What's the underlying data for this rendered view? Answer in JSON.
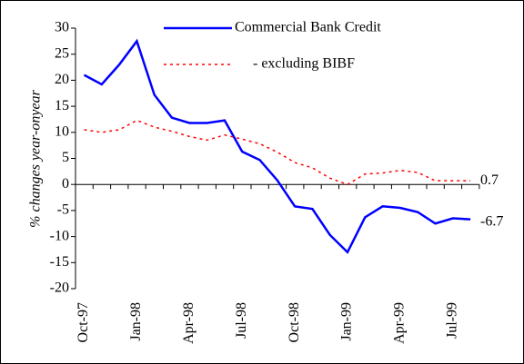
{
  "chart_data": {
    "type": "line",
    "y_label": "% changes year-onyear",
    "categories": [
      "Oct-97",
      null,
      null,
      "Jan-98",
      null,
      null,
      "Apr-98",
      null,
      null,
      "Jul-98",
      null,
      null,
      "Oct-98",
      null,
      null,
      "Jan-99",
      null,
      null,
      "Apr-99",
      null,
      null,
      "Jul-99",
      null
    ],
    "series": [
      {
        "name": "Commercial Bank Credit",
        "color": "#0000ff",
        "dash": "solid",
        "values": [
          21,
          19.2,
          23,
          27.5,
          17.2,
          12.8,
          11.8,
          11.8,
          12.3,
          6.3,
          4.7,
          0.8,
          -4.2,
          -4.7,
          -9.7,
          -13,
          -6.3,
          -4.2,
          -4.5,
          -5.3,
          -7.5,
          -6.5,
          -6.7
        ]
      },
      {
        "name": "- excluding BIBF",
        "color": "#ff0000",
        "dash": "dotted",
        "values": [
          10.5,
          10,
          10.5,
          12.3,
          11,
          10.2,
          9.2,
          8.5,
          9.5,
          8.7,
          7.8,
          6.2,
          4.2,
          3.2,
          1.2,
          0,
          2,
          2.2,
          2.7,
          2.3,
          0.7,
          0.7,
          0.7
        ]
      }
    ],
    "end_labels": true,
    "ylim": [
      -20,
      30
    ],
    "yticks": [
      -20,
      -15,
      -10,
      -5,
      0,
      5,
      10,
      15,
      20,
      25,
      30
    ],
    "grid": false
  }
}
